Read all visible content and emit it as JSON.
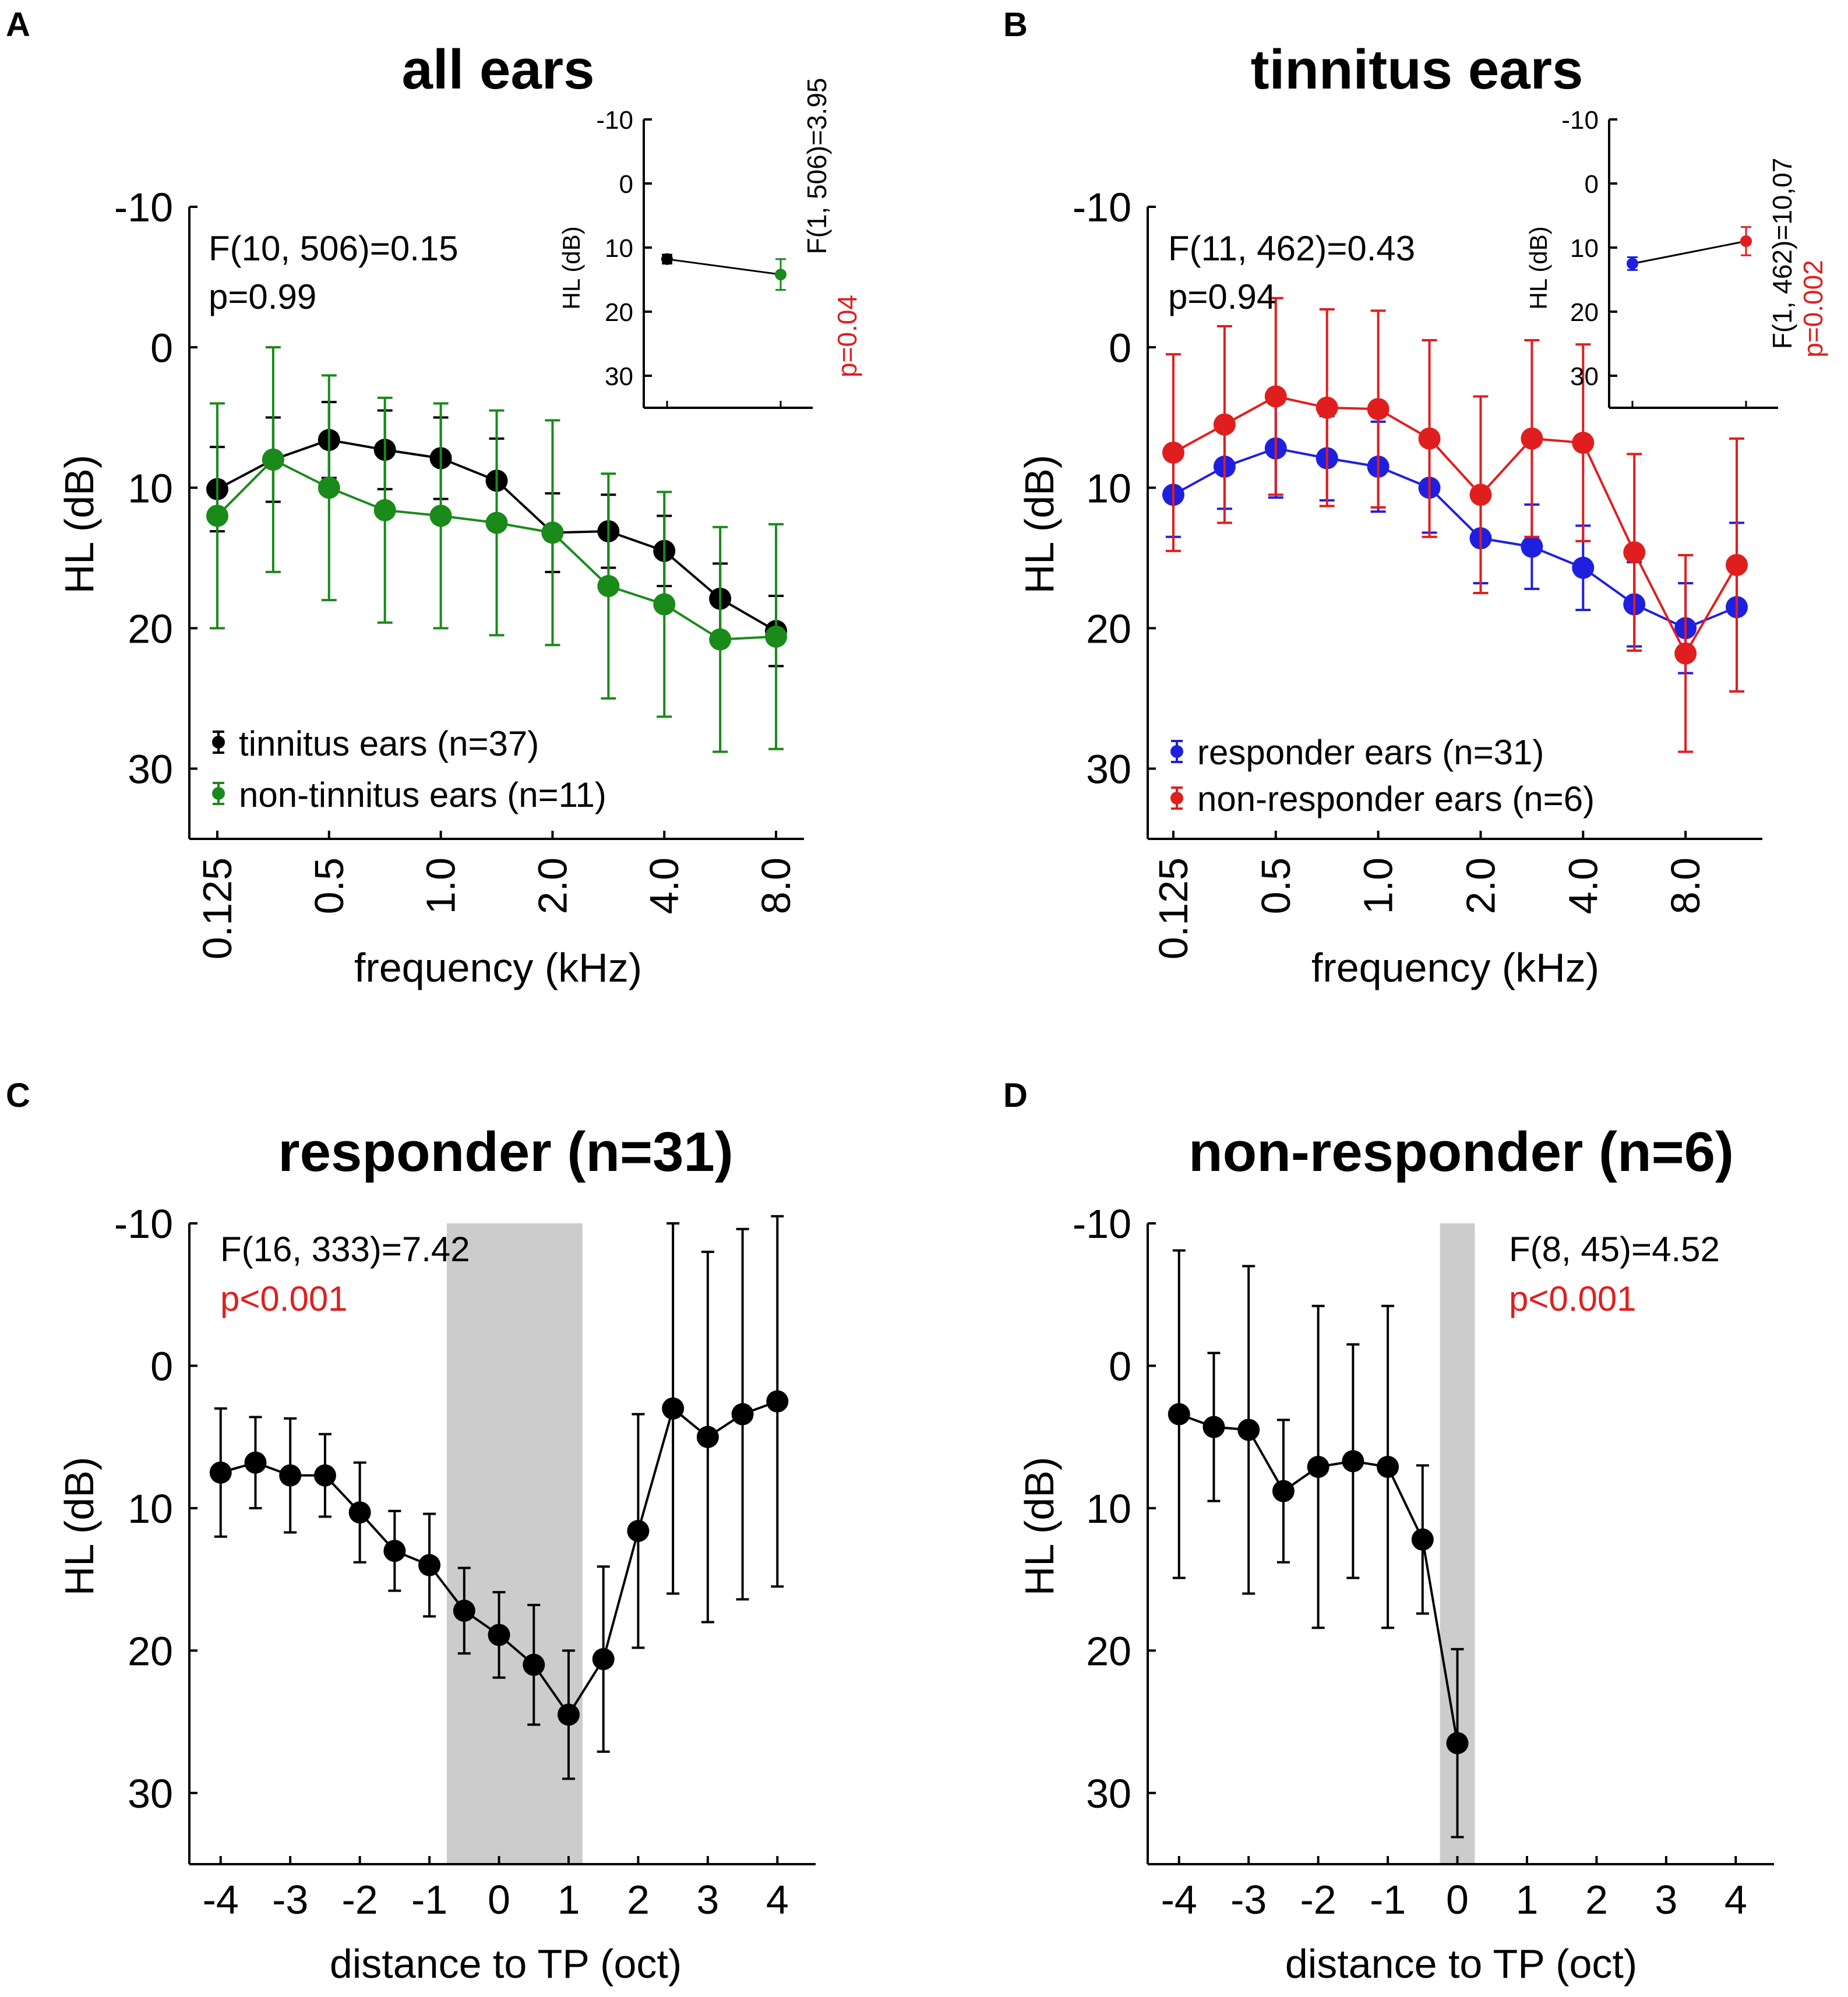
{
  "figure": {
    "colors": {
      "black": "#000000",
      "green": "#1a8a1a",
      "blue": "#1f1fe0",
      "red": "#e01e1e",
      "shade": "#cccccc"
    },
    "panels": [
      {
        "id": "A",
        "letter": "A",
        "title": "all ears",
        "ylabel": "HL (dB)",
        "xlabel": "frequency (kHz)",
        "y_ticks": [
          "-10",
          "0",
          "10",
          "20",
          "30"
        ],
        "x_tick_labels": [
          "0.125",
          "0.5",
          "1.0",
          "2.0",
          "4.0",
          "8.0"
        ],
        "stat_line1": "F(10, 506)=0.15",
        "stat_line2": "p=0.99",
        "legend": [
          "tinnitus ears (n=37)",
          "non-tinnitus ears (n=11)"
        ],
        "inset": {
          "ylabel": "HL (dB)",
          "y_ticks": [
            "-10",
            "0",
            "10",
            "20",
            "30"
          ],
          "stat": "F(1, 506)=3.95",
          "p": "p=0.04"
        }
      },
      {
        "id": "B",
        "letter": "B",
        "title": "tinnitus ears",
        "ylabel": "HL (dB)",
        "xlabel": "frequency (kHz)",
        "y_ticks": [
          "-10",
          "0",
          "10",
          "20",
          "30"
        ],
        "x_tick_labels": [
          "0.125",
          "0.5",
          "1.0",
          "2.0",
          "4.0",
          "8.0"
        ],
        "stat_line1": "F(11, 462)=0.43",
        "stat_line2": "p=0.94",
        "legend": [
          "responder ears (n=31)",
          "non-responder ears (n=6)"
        ],
        "inset": {
          "ylabel": "HL (dB)",
          "y_ticks": [
            "-10",
            "0",
            "10",
            "20",
            "30"
          ],
          "stat": "F(1, 462)=10,07",
          "p": "p=0.002"
        }
      },
      {
        "id": "C",
        "letter": "C",
        "title": "responder (n=31)",
        "ylabel": "HL (dB)",
        "xlabel": "distance to TP (oct)",
        "y_ticks": [
          "-10",
          "0",
          "10",
          "20",
          "30"
        ],
        "x_tick_labels": [
          "-4",
          "-3",
          "-2",
          "-1",
          "0",
          "1",
          "2",
          "3",
          "4"
        ],
        "stat_line1": "F(16, 333)=7.42",
        "stat_line2": "p<0.001"
      },
      {
        "id": "D",
        "letter": "D",
        "title": "non-responder (n=6)",
        "ylabel": "HL (dB)",
        "xlabel": "distance to TP (oct)",
        "y_ticks": [
          "-10",
          "0",
          "10",
          "20",
          "30"
        ],
        "x_tick_labels": [
          "-4",
          "-3",
          "-2",
          "-1",
          "0",
          "1",
          "2",
          "3",
          "4"
        ],
        "stat_line1": "F(8, 45)=4.52",
        "stat_line2": "p<0.001"
      }
    ]
  },
  "chart_data": [
    {
      "panel": "A",
      "type": "line",
      "title": "all ears",
      "xlabel": "frequency (kHz)",
      "ylabel": "HL (dB)",
      "ylim": [
        -10,
        35
      ],
      "y_inverted": true,
      "x_index_range": [
        -0.5,
        10.5
      ],
      "x_index": [
        0,
        1,
        2,
        3,
        4,
        5,
        6,
        7,
        8,
        9,
        10
      ],
      "x_tick_index": [
        0,
        2,
        4,
        6,
        8,
        10
      ],
      "x_tick_labels": [
        "0.125",
        "0.5",
        "1.0",
        "2.0",
        "4.0",
        "8.0"
      ],
      "series": [
        {
          "name": "tinnitus ears (n=37)",
          "color": "black",
          "values": [
            10.1,
            8.0,
            6.6,
            7.3,
            7.9,
            9.5,
            13.2,
            13.1,
            14.5,
            17.9,
            20.2
          ],
          "errors": [
            3.0,
            3.0,
            2.7,
            2.8,
            2.9,
            3.0,
            2.8,
            2.6,
            2.5,
            2.5,
            2.5
          ]
        },
        {
          "name": "non-tinnitus ears (n=11)",
          "color": "green",
          "values": [
            12.0,
            8.0,
            10.0,
            11.6,
            12.0,
            12.5,
            13.2,
            17.0,
            18.3,
            20.8,
            20.6
          ],
          "errors": [
            8.0,
            8.0,
            8.0,
            8.0,
            8.0,
            8.0,
            8.0,
            8.0,
            8.0,
            8.0,
            8.0
          ]
        }
      ]
    },
    {
      "panel": "A-inset",
      "type": "line",
      "ylabel": "HL (dB)",
      "ylim": [
        -10,
        35
      ],
      "y_inverted": true,
      "x_index": [
        0,
        1
      ],
      "series": [
        {
          "name": "tinnitus ears",
          "color": "black",
          "values": [
            11.8
          ],
          "errors": [
            0.7
          ],
          "x": [
            0
          ]
        },
        {
          "name": "non-tinnitus ears",
          "color": "green",
          "values": [
            14.2
          ],
          "errors": [
            2.4
          ],
          "x": [
            1
          ]
        }
      ],
      "stat": "F(1, 506)=3.95",
      "p": "p=0.04"
    },
    {
      "panel": "B",
      "type": "line",
      "title": "tinnitus ears",
      "xlabel": "frequency (kHz)",
      "ylabel": "HL (dB)",
      "ylim": [
        -10,
        35
      ],
      "y_inverted": true,
      "x_index_range": [
        -0.5,
        11.5
      ],
      "x_index": [
        0,
        1,
        2,
        3,
        4,
        5,
        6,
        7,
        8,
        9,
        10,
        11
      ],
      "x_tick_index": [
        0,
        2,
        4,
        6,
        8,
        10
      ],
      "x_tick_labels": [
        "0.125",
        "0.5",
        "1.0",
        "2.0",
        "4.0",
        "8.0"
      ],
      "series": [
        {
          "name": "responder ears (n=31)",
          "color": "blue",
          "values": [
            10.5,
            8.5,
            7.2,
            7.9,
            8.5,
            10.0,
            13.6,
            14.2,
            15.7,
            18.3,
            20.0,
            18.5
          ],
          "errors": [
            3.0,
            3.0,
            3.5,
            3.0,
            3.2,
            3.2,
            3.2,
            3.0,
            3.0,
            3.0,
            3.2,
            6.0
          ]
        },
        {
          "name": "non-responder ears (n=6)",
          "color": "red",
          "values": [
            7.5,
            5.5,
            3.5,
            4.3,
            4.4,
            6.5,
            10.5,
            6.5,
            6.8,
            14.6,
            21.8,
            15.5
          ],
          "errors": [
            7.0,
            7.0,
            7.0,
            7.0,
            7.0,
            7.0,
            7.0,
            7.0,
            7.0,
            7.0,
            7.0,
            9.0
          ]
        }
      ]
    },
    {
      "panel": "B-inset",
      "type": "line",
      "ylabel": "HL (dB)",
      "ylim": [
        -10,
        35
      ],
      "y_inverted": true,
      "x_index": [
        0,
        1
      ],
      "series": [
        {
          "name": "responder ears",
          "color": "blue",
          "values": [
            12.5
          ],
          "errors": [
            1.0
          ],
          "x": [
            0
          ]
        },
        {
          "name": "non-responder ears",
          "color": "red",
          "values": [
            9.0
          ],
          "errors": [
            2.2
          ],
          "x": [
            1
          ]
        }
      ],
      "stat": "F(1, 462)=10,07",
      "p": "p=0.002"
    },
    {
      "panel": "C",
      "type": "line",
      "title": "responder (n=31)",
      "xlabel": "distance to TP (oct)",
      "ylabel": "HL (dB)",
      "ylim": [
        -10,
        35
      ],
      "xlim": [
        -4.45,
        4.55
      ],
      "y_inverted": true,
      "shaded_x_range": [
        -0.75,
        1.2
      ],
      "series": [
        {
          "name": "responder",
          "color": "black",
          "x": [
            -4,
            -3.5,
            -3,
            -2.5,
            -2,
            -1.5,
            -1,
            -0.5,
            0,
            0.5,
            1,
            1.5,
            2,
            2.5,
            3,
            3.5,
            4
          ],
          "values": [
            7.5,
            6.8,
            7.7,
            7.7,
            10.3,
            13.0,
            14.0,
            17.2,
            18.9,
            21.0,
            24.5,
            20.6,
            11.6,
            3.0,
            5.0,
            3.4,
            2.5
          ],
          "errors": [
            4.5,
            3.2,
            4.0,
            2.9,
            3.5,
            2.8,
            3.6,
            3.0,
            3.0,
            4.2,
            4.5,
            6.5,
            8.2,
            13.0,
            13.0,
            13.0,
            13.0
          ]
        }
      ]
    },
    {
      "panel": "D",
      "type": "line",
      "title": "non-responder (n=6)",
      "xlabel": "distance to TP (oct)",
      "ylabel": "HL (dB)",
      "ylim": [
        -10,
        35
      ],
      "xlim": [
        -4.45,
        4.55
      ],
      "y_inverted": true,
      "shaded_x_range": [
        -0.25,
        0.25
      ],
      "series": [
        {
          "name": "non-responder",
          "color": "black",
          "x": [
            -4,
            -3.5,
            -3,
            -2.5,
            -2,
            -1.5,
            -1,
            -0.5,
            0
          ],
          "values": [
            3.4,
            4.3,
            4.5,
            8.8,
            7.1,
            6.7,
            7.1,
            12.2,
            26.5
          ],
          "errors": [
            11.5,
            5.2,
            11.5,
            5.0,
            11.3,
            8.2,
            11.3,
            5.2,
            6.6
          ]
        }
      ]
    }
  ]
}
